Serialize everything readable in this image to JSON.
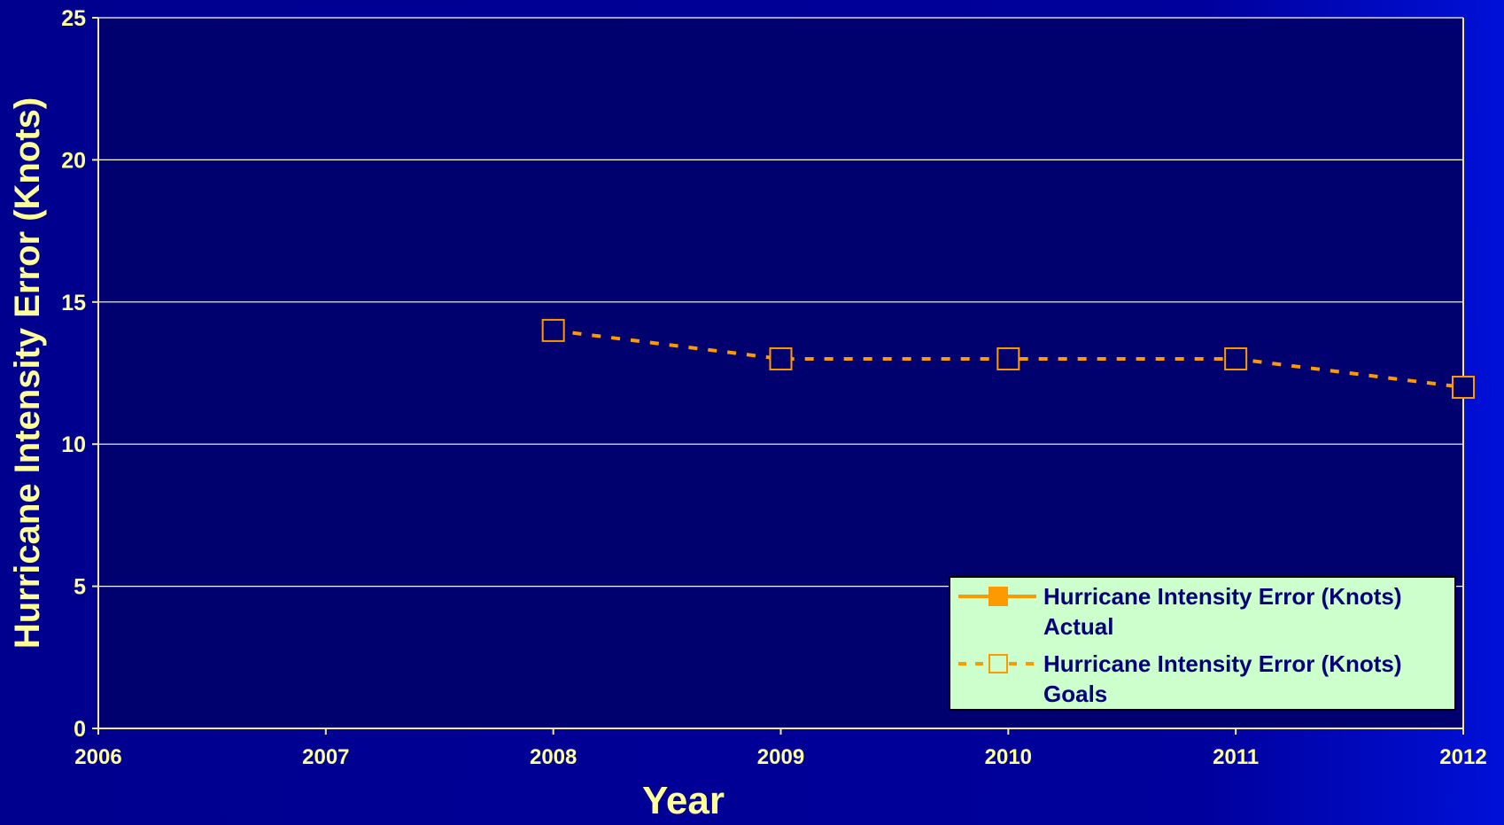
{
  "chart_data": {
    "type": "line",
    "xlabel": "Year",
    "ylabel": "Hurricane Intensity Error (Knots)",
    "x": [
      2006,
      2007,
      2008,
      2009,
      2010,
      2011,
      2012
    ],
    "xlim": [
      2006,
      2012
    ],
    "ylim": [
      0,
      25
    ],
    "yticks": [
      0,
      5,
      10,
      15,
      20,
      25
    ],
    "xticks": [
      2006,
      2007,
      2008,
      2009,
      2010,
      2011,
      2012
    ],
    "grid": true,
    "legend_position": "bottom-right",
    "series": [
      {
        "name": "Hurricane Intensity Error (Knots) Actual",
        "legend_lines": [
          "Hurricane Intensity Error (Knots)",
          "Actual"
        ],
        "style": "solid",
        "marker": "filled-square",
        "x": [],
        "values": []
      },
      {
        "name": "Hurricane Intensity Error (Knots) Goals",
        "legend_lines": [
          "Hurricane Intensity Error (Knots)",
          "Goals"
        ],
        "style": "dashed",
        "marker": "open-square",
        "x": [
          2008,
          2009,
          2010,
          2011,
          2012
        ],
        "values": [
          14,
          13,
          13,
          13,
          12
        ]
      }
    ],
    "colors": {
      "plot_background": "#00006e",
      "grid": "#ffffff",
      "axis": "#f2e6a0",
      "text": "#ffff99",
      "series": "#ff9900",
      "legend_background": "#ccffcc",
      "legend_text": "#00007a"
    }
  }
}
